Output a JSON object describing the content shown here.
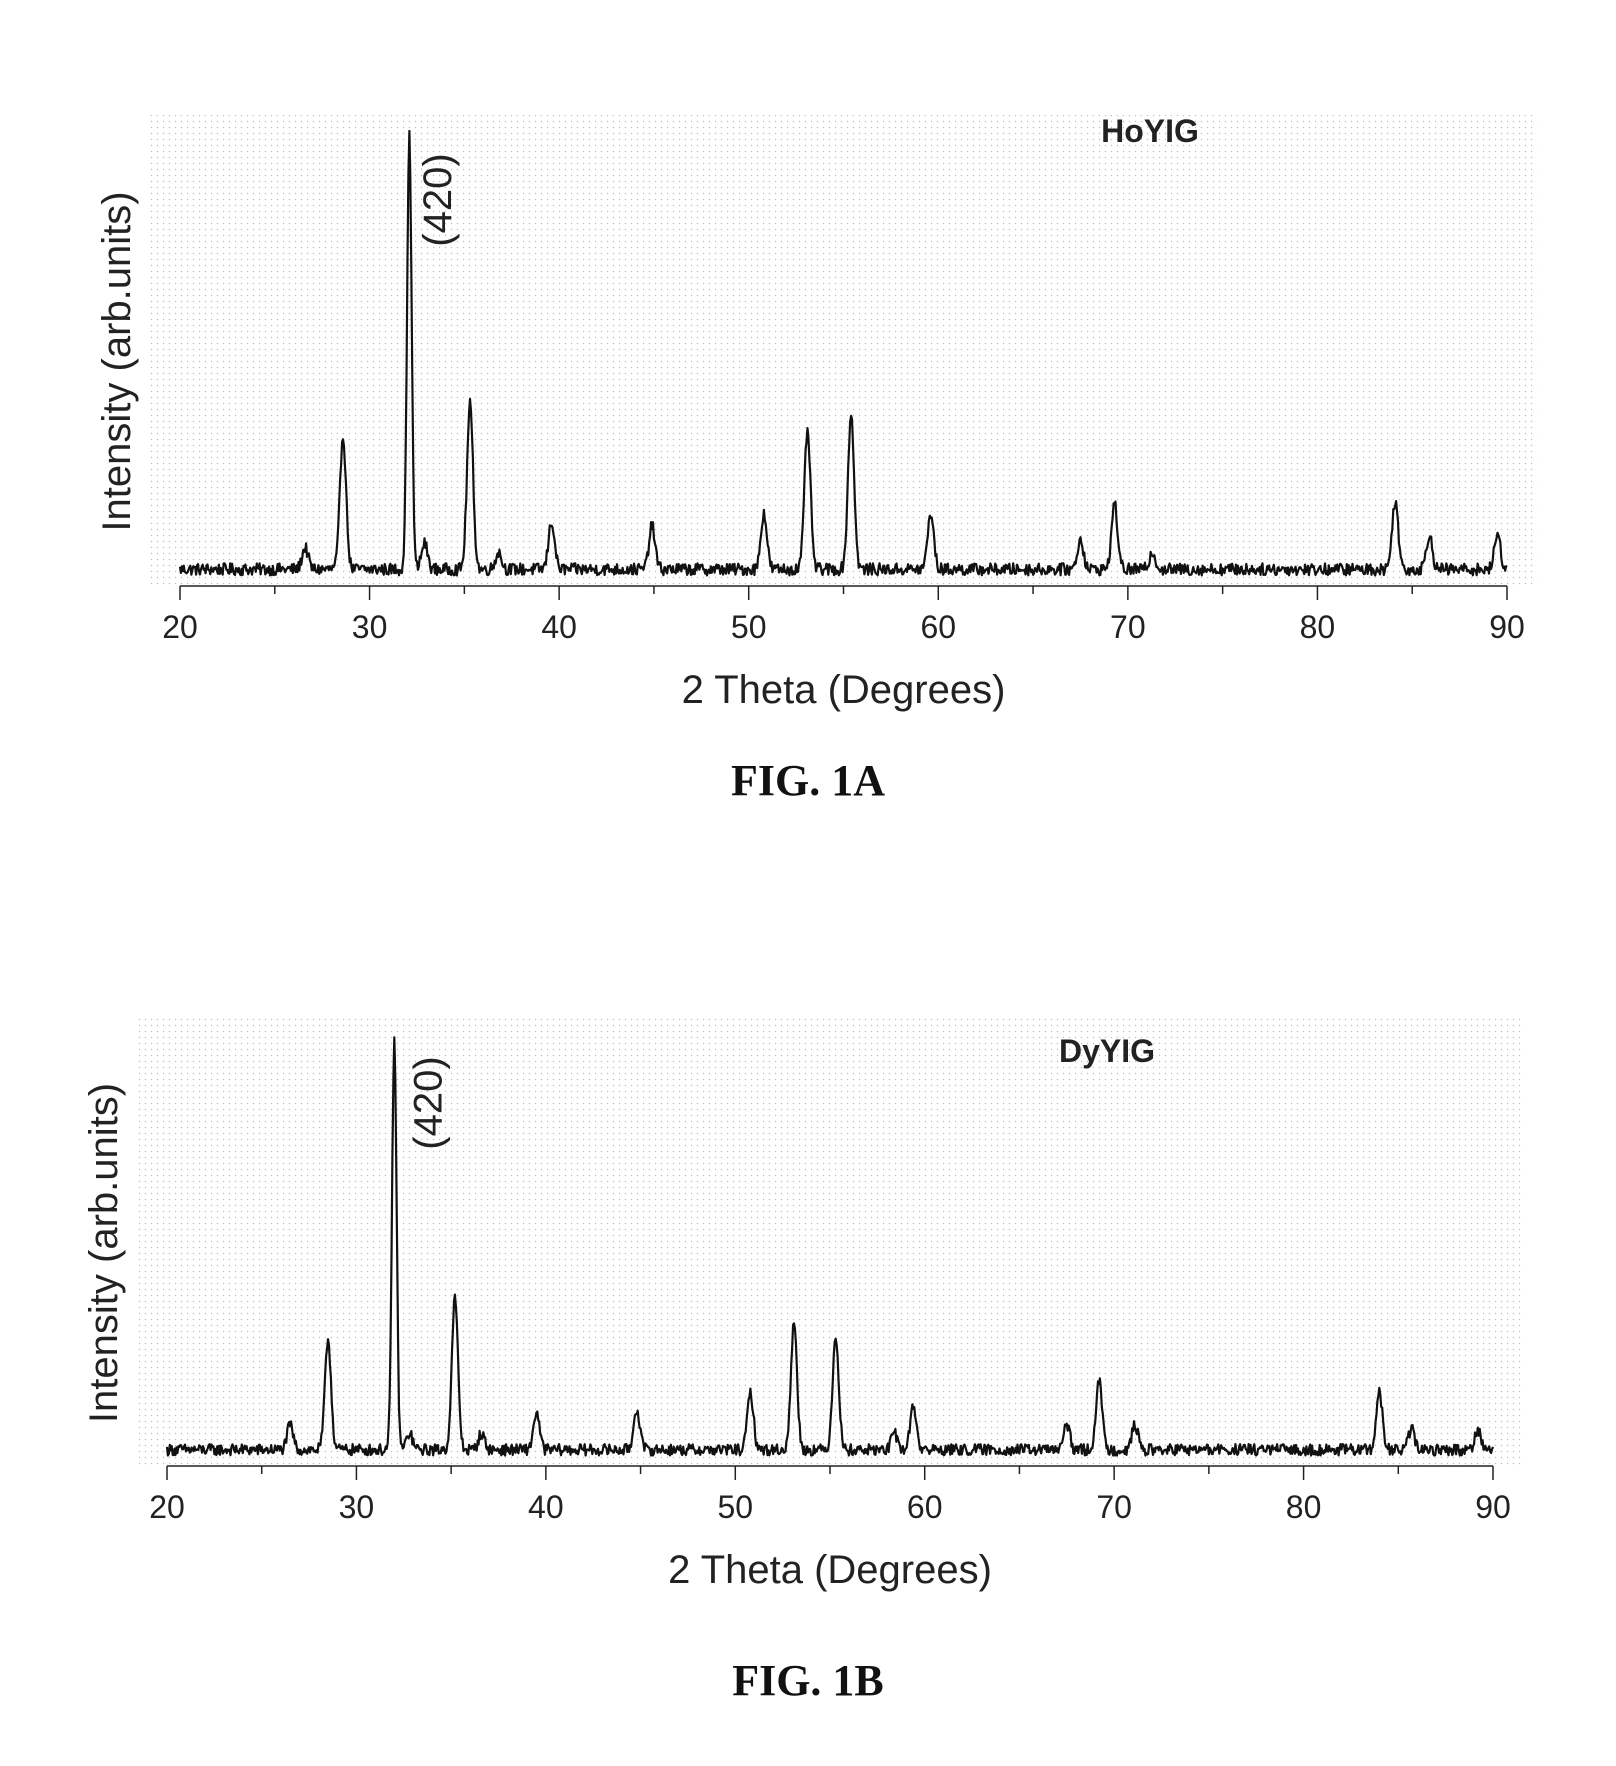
{
  "chart_data": [
    {
      "type": "line",
      "sample_label": "HoYIG",
      "peak_annotation": "(420)",
      "annotation_x": 34.3,
      "xlabel": "2 Theta (Degrees)",
      "ylabel": "Intensity (arb.units)",
      "xlim": [
        20,
        90
      ],
      "ylim": [
        0,
        1
      ],
      "xticks": [
        20,
        30,
        40,
        50,
        60,
        70,
        80,
        90
      ],
      "grid": false,
      "peaks": [
        {
          "x": 26.6,
          "y": 0.05
        },
        {
          "x": 28.6,
          "y": 0.31
        },
        {
          "x": 32.1,
          "y": 1.0
        },
        {
          "x": 32.9,
          "y": 0.06
        },
        {
          "x": 35.3,
          "y": 0.38
        },
        {
          "x": 36.8,
          "y": 0.04
        },
        {
          "x": 39.6,
          "y": 0.11
        },
        {
          "x": 44.9,
          "y": 0.1
        },
        {
          "x": 50.8,
          "y": 0.13
        },
        {
          "x": 53.1,
          "y": 0.32
        },
        {
          "x": 55.4,
          "y": 0.36
        },
        {
          "x": 59.6,
          "y": 0.13
        },
        {
          "x": 67.5,
          "y": 0.07
        },
        {
          "x": 69.3,
          "y": 0.15
        },
        {
          "x": 71.3,
          "y": 0.04
        },
        {
          "x": 84.1,
          "y": 0.16
        },
        {
          "x": 85.9,
          "y": 0.08
        },
        {
          "x": 89.5,
          "y": 0.08
        }
      ],
      "baseline": 0.02,
      "caption": "FIG. 1A"
    },
    {
      "type": "line",
      "sample_label": "DyYIG",
      "peak_annotation": "(420)",
      "annotation_x": 34.5,
      "xlabel": "2 Theta (Degrees)",
      "ylabel": "Intensity (arb.units)",
      "xlim": [
        20,
        90
      ],
      "ylim": [
        0,
        1
      ],
      "xticks": [
        20,
        30,
        40,
        50,
        60,
        70,
        80,
        90
      ],
      "grid": false,
      "peaks": [
        {
          "x": 26.5,
          "y": 0.06
        },
        {
          "x": 28.5,
          "y": 0.27
        },
        {
          "x": 32.0,
          "y": 1.0
        },
        {
          "x": 32.8,
          "y": 0.04
        },
        {
          "x": 35.2,
          "y": 0.37
        },
        {
          "x": 36.6,
          "y": 0.04
        },
        {
          "x": 39.5,
          "y": 0.09
        },
        {
          "x": 44.8,
          "y": 0.1
        },
        {
          "x": 50.8,
          "y": 0.14
        },
        {
          "x": 53.1,
          "y": 0.31
        },
        {
          "x": 55.3,
          "y": 0.28
        },
        {
          "x": 58.4,
          "y": 0.04
        },
        {
          "x": 59.4,
          "y": 0.11
        },
        {
          "x": 67.5,
          "y": 0.06
        },
        {
          "x": 69.2,
          "y": 0.17
        },
        {
          "x": 71.1,
          "y": 0.06
        },
        {
          "x": 84.0,
          "y": 0.14
        },
        {
          "x": 85.7,
          "y": 0.05
        },
        {
          "x": 89.2,
          "y": 0.05
        }
      ],
      "baseline": 0.02,
      "caption": "FIG. 1B"
    }
  ]
}
